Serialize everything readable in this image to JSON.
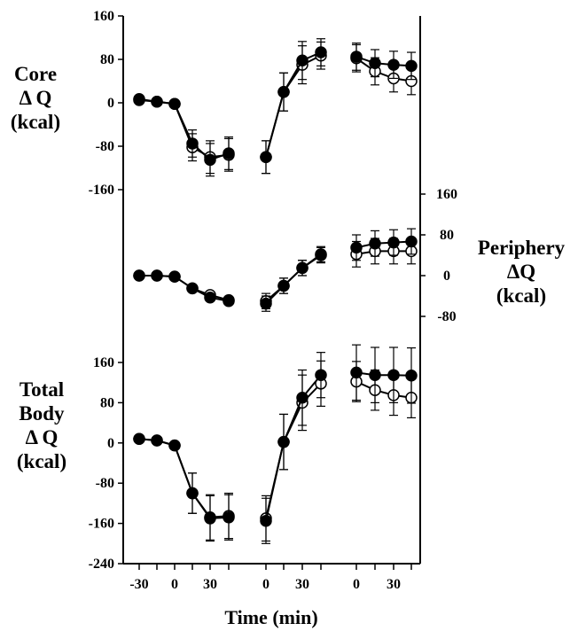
{
  "chart_data": {
    "type": "line",
    "xlabel": "Time (min)",
    "x_tick_labels": [
      "-30",
      "0",
      "30",
      "0",
      "30",
      "0",
      "30"
    ],
    "segments": [
      {
        "id": "cooling",
        "x": [
          -30,
          -15,
          0,
          15,
          30,
          45
        ]
      },
      {
        "id": "rewarming",
        "x": [
          0,
          15,
          30,
          45
        ]
      },
      {
        "id": "recovery",
        "x": [
          0,
          15,
          30,
          45
        ]
      }
    ],
    "panels": [
      {
        "id": "core",
        "ylabel_lines": [
          "Core",
          "Δ Q",
          "(kcal)"
        ],
        "axis_side": "left",
        "ylim": [
          -160,
          160
        ],
        "yticks": [
          160,
          80,
          0,
          -80,
          -160
        ],
        "series": [
          {
            "marker": "filled",
            "values": {
              "cooling": [
                7,
                2,
                -2,
                -75,
                -105,
                -93
              ],
              "rewarming": [
                -100,
                20,
                78,
                93
              ],
              "recovery": [
                85,
                73,
                70,
                68
              ]
            },
            "err": {
              "cooling": [
                0,
                0,
                0,
                25,
                30,
                30
              ],
              "rewarming": [
                30,
                35,
                35,
                25
              ],
              "recovery": [
                25,
                25,
                25,
                25
              ]
            }
          },
          {
            "marker": "open",
            "values": {
              "cooling": [
                5,
                2,
                -2,
                -82,
                -100,
                -96
              ],
              "rewarming": [
                -100,
                20,
                70,
                87
              ],
              "recovery": [
                82,
                58,
                45,
                40
              ]
            },
            "err": {
              "cooling": [
                0,
                0,
                0,
                25,
                30,
                30
              ],
              "rewarming": [
                30,
                35,
                35,
                25
              ],
              "recovery": [
                25,
                25,
                25,
                25
              ]
            }
          }
        ]
      },
      {
        "id": "periphery",
        "ylabel_lines": [
          "Periphery",
          "ΔQ",
          "(kcal)"
        ],
        "axis_side": "right",
        "ylim": [
          -80,
          160
        ],
        "yticks": [
          160,
          80,
          0,
          -80
        ],
        "series": [
          {
            "marker": "filled",
            "values": {
              "cooling": [
                0,
                0,
                -2,
                -25,
                -43,
                -50
              ],
              "rewarming": [
                -55,
                -20,
                15,
                42
              ],
              "recovery": [
                55,
                63,
                65,
                67
              ]
            },
            "err": {
              "cooling": [
                0,
                0,
                0,
                0,
                0,
                0
              ],
              "rewarming": [
                15,
                15,
                15,
                15
              ],
              "recovery": [
                25,
                25,
                25,
                25
              ]
            }
          },
          {
            "marker": "open",
            "values": {
              "cooling": [
                0,
                0,
                -2,
                -25,
                -38,
                -48
              ],
              "rewarming": [
                -50,
                -20,
                15,
                40
              ],
              "recovery": [
                42,
                48,
                48,
                48
              ]
            },
            "err": {
              "cooling": [
                0,
                0,
                0,
                0,
                0,
                0
              ],
              "rewarming": [
                15,
                15,
                15,
                15
              ],
              "recovery": [
                25,
                25,
                25,
                25
              ]
            }
          }
        ]
      },
      {
        "id": "total",
        "ylabel_lines": [
          "Total",
          "Body",
          "Δ Q",
          "(kcal)"
        ],
        "axis_side": "left",
        "ylim": [
          -240,
          160
        ],
        "yticks": [
          160,
          80,
          0,
          -80,
          -160,
          -240
        ],
        "series": [
          {
            "marker": "filled",
            "values": {
              "cooling": [
                8,
                5,
                -5,
                -100,
                -150,
                -148
              ],
              "rewarming": [
                -155,
                2,
                90,
                135
              ],
              "recovery": [
                140,
                135,
                135,
                134
              ]
            },
            "err": {
              "cooling": [
                0,
                0,
                0,
                40,
                45,
                45
              ],
              "rewarming": [
                45,
                55,
                55,
                45
              ],
              "recovery": [
                55,
                55,
                55,
                55
              ]
            }
          },
          {
            "marker": "open",
            "values": {
              "cooling": [
                8,
                5,
                -5,
                -100,
                -148,
                -145
              ],
              "rewarming": [
                -150,
                2,
                80,
                118
              ],
              "recovery": [
                122,
                105,
                95,
                90
              ]
            },
            "err": {
              "cooling": [
                0,
                0,
                0,
                40,
                45,
                45
              ],
              "rewarming": [
                45,
                55,
                55,
                45
              ],
              "recovery": [
                40,
                40,
                40,
                40
              ]
            }
          }
        ]
      }
    ]
  }
}
